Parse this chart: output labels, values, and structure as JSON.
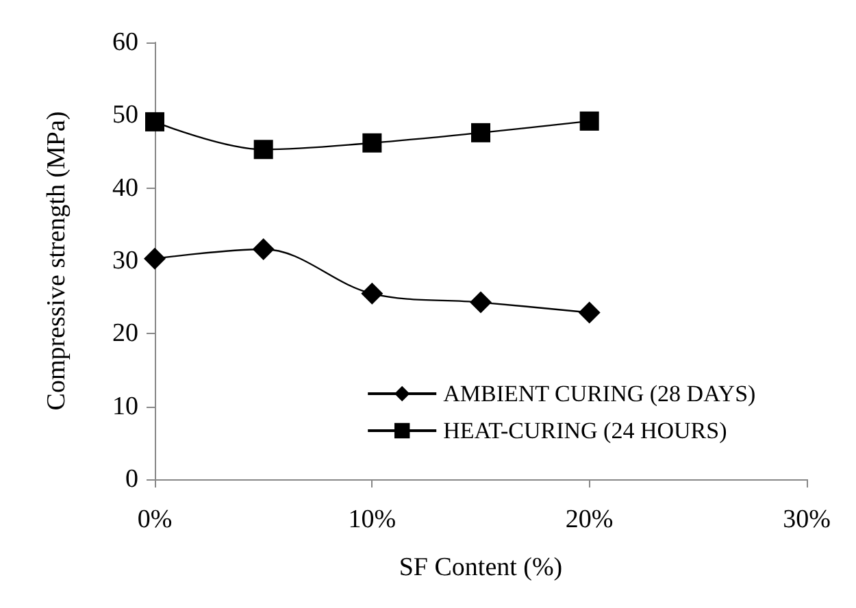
{
  "chart_data": {
    "type": "line",
    "xlabel": "SF Content (%)",
    "ylabel": "Compressive strength (MPa)",
    "x": [
      0,
      5,
      10,
      15,
      20
    ],
    "series": [
      {
        "name": "AMBIENT CURING (28 DAYS)",
        "color": "#000000",
        "marker": "diamond",
        "values": [
          30.3,
          31.6,
          25.5,
          24.3,
          22.9
        ]
      },
      {
        "name": "HEAT-CURING (24 HOURS)",
        "color": "#000000",
        "marker": "square",
        "values": [
          49.1,
          45.3,
          46.2,
          47.6,
          49.2
        ]
      }
    ],
    "xlim": [
      0,
      30
    ],
    "xticks": [
      {
        "value": 0,
        "label": "0%"
      },
      {
        "value": 10,
        "label": "10%"
      },
      {
        "value": 20,
        "label": "20%"
      },
      {
        "value": 30,
        "label": "30%"
      }
    ],
    "ylim": [
      0,
      60
    ],
    "yticks": [
      0,
      10,
      20,
      30,
      40,
      50,
      60
    ],
    "grid": false,
    "legend": "bottom right",
    "line_style": "solid"
  }
}
